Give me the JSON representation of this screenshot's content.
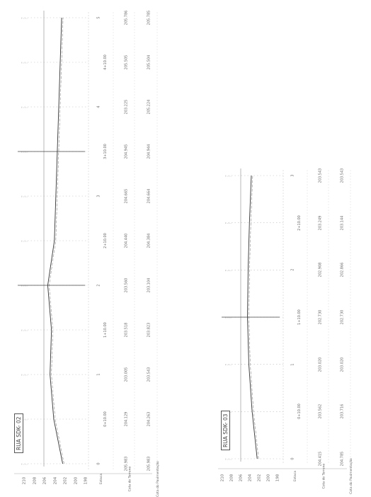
{
  "profiles": [
    {
      "title": "RUA SDK- 02",
      "headers": [
        "Estaca",
        "Cota do Terreno",
        "Cota do Pavimentação"
      ],
      "elevations": [
        "210",
        "208",
        "206",
        "204",
        "202",
        "200",
        "198"
      ],
      "stations": [
        {
          "estaca": "0",
          "terreno": "205.983",
          "pavimentacao": "205.983"
        },
        {
          "estaca": "0+10.00",
          "terreno": "204.129",
          "pavimentacao": "204.263"
        },
        {
          "estaca": "1",
          "terreno": "203.005",
          "pavimentacao": "203.543"
        },
        {
          "estaca": "1+10.00",
          "terreno": "203.518",
          "pavimentacao": "203.823"
        },
        {
          "estaca": "2",
          "terreno": "203.560",
          "pavimentacao": "203.104"
        },
        {
          "estaca": "2+10.00",
          "terreno": "204.440",
          "pavimentacao": "204.384"
        },
        {
          "estaca": "3",
          "terreno": "204.665",
          "pavimentacao": "204.664"
        },
        {
          "estaca": "3+10.00",
          "terreno": "204.945",
          "pavimentacao": "204.944"
        },
        {
          "estaca": "4",
          "terreno": "203.225",
          "pavimentacao": "205.224"
        },
        {
          "estaca": "4+10.00",
          "terreno": "205.505",
          "pavimentacao": "205.504"
        },
        {
          "estaca": "5",
          "terreno": "205.786",
          "pavimentacao": "205.785"
        }
      ]
    },
    {
      "title": "RUA SDK- 03",
      "headers": [
        "Estaca",
        "Cota do Terreno",
        "Cota do Pavimentação"
      ],
      "elevations": [
        "210",
        "208",
        "206",
        "204",
        "202",
        "200",
        "198"
      ],
      "stations": [
        {
          "estaca": "0",
          "terreno": "204.415",
          "pavimentacao": "204.785"
        },
        {
          "estaca": "0+10.00",
          "terreno": "203.562",
          "pavimentacao": "203.716"
        },
        {
          "estaca": "1",
          "terreno": "203.020",
          "pavimentacao": "203.020"
        },
        {
          "estaca": "1+10.00",
          "terreno": "202.730",
          "pavimentacao": "202.730"
        },
        {
          "estaca": "2",
          "terreno": "202.908",
          "pavimentacao": "202.866"
        },
        {
          "estaca": "2+10.00",
          "terreno": "203.249",
          "pavimentacao": "203.144"
        },
        {
          "estaca": "3",
          "terreno": "203.543",
          "pavimentacao": "203.543"
        }
      ]
    }
  ]
}
